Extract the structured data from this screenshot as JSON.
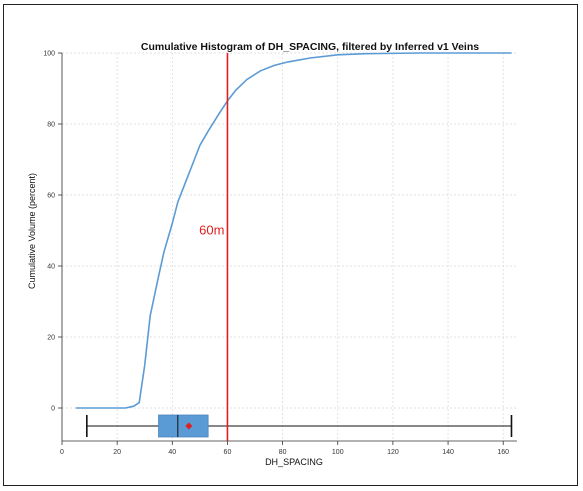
{
  "chart_data": {
    "type": "line",
    "title": "Cumulative Histogram of DH_SPACING, filtered by Inferred v1 Veins",
    "xlabel": "DH_SPACING",
    "ylabel": "Cumulative Volume (percent)",
    "xlim": [
      0,
      165
    ],
    "ylim": [
      0,
      100
    ],
    "xticks": [
      0,
      20,
      40,
      60,
      80,
      100,
      120,
      140,
      160
    ],
    "yticks": [
      0,
      20,
      40,
      60,
      80,
      100
    ],
    "grid": true,
    "line_color": "#5b9bd5",
    "series": [
      {
        "points": [
          [
            5,
            0
          ],
          [
            20,
            0
          ],
          [
            23,
            0
          ],
          [
            26,
            0.5
          ],
          [
            28,
            1.5
          ],
          [
            30,
            12
          ],
          [
            32,
            26
          ],
          [
            35,
            37
          ],
          [
            37,
            44
          ],
          [
            40,
            52
          ],
          [
            42,
            58
          ],
          [
            45,
            64
          ],
          [
            48,
            70
          ],
          [
            50,
            74
          ],
          [
            53,
            78
          ],
          [
            57,
            83
          ],
          [
            60,
            86.5
          ],
          [
            63,
            89.5
          ],
          [
            67,
            92.5
          ],
          [
            72,
            95
          ],
          [
            77,
            96.5
          ],
          [
            82,
            97.5
          ],
          [
            90,
            98.6
          ],
          [
            100,
            99.5
          ],
          [
            110,
            99.8
          ],
          [
            130,
            100
          ],
          [
            163,
            100
          ]
        ]
      }
    ],
    "reference_line": {
      "x": 60,
      "label": "60m",
      "label_y": 50,
      "color": "#e02020"
    },
    "boxplot": {
      "min": 9,
      "q1": 35,
      "median": 42,
      "q3": 53,
      "max": 163,
      "mean": 46,
      "box_color": "#5b9bd5",
      "mean_color": "#e02020"
    }
  }
}
